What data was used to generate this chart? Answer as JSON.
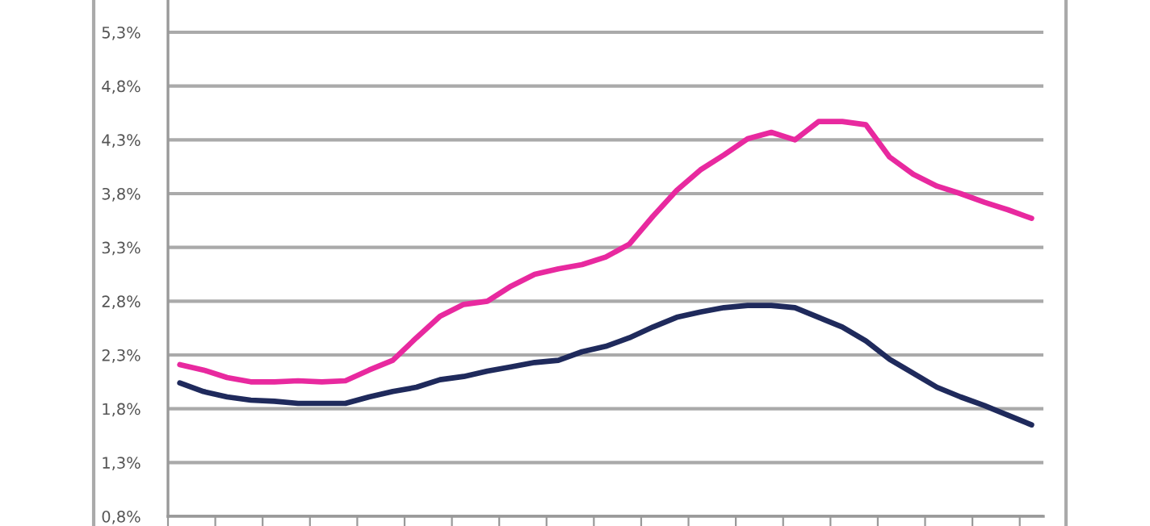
{
  "chart_data": {
    "type": "line",
    "categories": [
      null,
      null,
      null,
      null,
      null,
      null,
      null,
      null,
      null,
      null,
      null,
      null,
      null,
      null,
      null,
      null,
      null,
      null,
      null,
      null,
      null,
      null,
      null,
      null,
      null,
      null,
      null,
      null,
      null,
      null,
      null,
      null,
      null,
      null,
      null,
      null,
      null
    ],
    "series": [
      {
        "color": "#e8299f",
        "values": [
          2.21,
          2.16,
          2.09,
          2.05,
          2.05,
          2.06,
          2.05,
          2.06,
          2.16,
          2.25,
          2.46,
          2.66,
          2.77,
          2.8,
          2.94,
          3.05,
          3.1,
          3.14,
          3.21,
          3.33,
          3.59,
          3.83,
          4.02,
          4.16,
          4.31,
          4.37,
          4.3,
          4.47,
          4.47,
          4.44,
          4.14,
          3.98,
          3.87,
          3.8,
          3.72,
          3.65,
          3.57
        ]
      },
      {
        "color": "#1f2a5c",
        "values": [
          2.04,
          1.96,
          1.91,
          1.88,
          1.87,
          1.85,
          1.85,
          1.85,
          1.91,
          1.96,
          2.0,
          2.07,
          2.1,
          2.15,
          2.19,
          2.23,
          2.25,
          2.33,
          2.38,
          2.46,
          2.56,
          2.65,
          2.7,
          2.74,
          2.76,
          2.76,
          2.74,
          2.65,
          2.56,
          2.43,
          2.26,
          2.13,
          2.0,
          1.91,
          1.83,
          1.74,
          1.65
        ]
      }
    ],
    "ylim": [
      0.8,
      5.6
    ],
    "yticks": [
      {
        "value": 0.8,
        "label": "0,8%"
      },
      {
        "value": 1.3,
        "label": "1,3%"
      },
      {
        "value": 1.8,
        "label": "1,8%"
      },
      {
        "value": 2.3,
        "label": "2,3%"
      },
      {
        "value": 2.8,
        "label": "2,8%"
      },
      {
        "value": 3.3,
        "label": "3,3%"
      },
      {
        "value": 3.8,
        "label": "3,8%"
      },
      {
        "value": 4.3,
        "label": "4,3%"
      },
      {
        "value": 4.8,
        "label": "4,8%"
      },
      {
        "value": 5.3,
        "label": "5,3%"
      }
    ],
    "grid": "y",
    "tick_labels": "y",
    "marker": "none",
    "line_style": "solid"
  }
}
